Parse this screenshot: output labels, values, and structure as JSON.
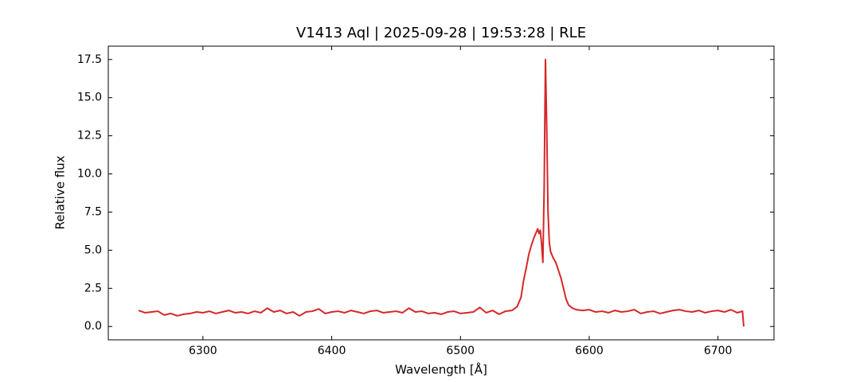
{
  "chart_data": {
    "type": "line",
    "title": "V1413 Aql | 2025-09-28 | 19:53:28 | RLE",
    "x_label": "Wavelength [Å]",
    "y_label": "Relative flux",
    "x": [
      6250,
      6255,
      6260,
      6265,
      6270,
      6275,
      6280,
      6285,
      6290,
      6295,
      6300,
      6305,
      6310,
      6315,
      6320,
      6325,
      6330,
      6335,
      6340,
      6345,
      6350,
      6355,
      6360,
      6365,
      6370,
      6375,
      6380,
      6385,
      6390,
      6395,
      6400,
      6405,
      6410,
      6415,
      6420,
      6425,
      6430,
      6435,
      6440,
      6445,
      6450,
      6455,
      6460,
      6465,
      6470,
      6475,
      6480,
      6485,
      6490,
      6495,
      6500,
      6505,
      6510,
      6515,
      6520,
      6525,
      6530,
      6535,
      6540,
      6544,
      6547,
      6549,
      6551,
      6553,
      6555,
      6557,
      6559,
      6560,
      6561,
      6562,
      6563,
      6564,
      6565,
      6566,
      6567,
      6568,
      6569,
      6570,
      6572,
      6574,
      6576,
      6578,
      6580,
      6582,
      6584,
      6587,
      6590,
      6595,
      6600,
      6605,
      6610,
      6615,
      6620,
      6625,
      6630,
      6635,
      6640,
      6645,
      6650,
      6655,
      6660,
      6665,
      6670,
      6675,
      6680,
      6685,
      6690,
      6695,
      6700,
      6705,
      6710,
      6715,
      6719,
      6720
    ],
    "series": [
      {
        "name": "Relative flux",
        "color": "#d62728",
        "values": [
          1.05,
          0.9,
          0.95,
          1.0,
          0.75,
          0.85,
          0.7,
          0.8,
          0.85,
          0.95,
          0.9,
          1.0,
          0.85,
          0.95,
          1.05,
          0.9,
          0.95,
          0.85,
          1.0,
          0.9,
          1.2,
          0.95,
          1.05,
          0.85,
          0.95,
          0.7,
          0.95,
          1.0,
          1.15,
          0.85,
          0.95,
          1.0,
          0.9,
          1.05,
          0.95,
          0.85,
          1.0,
          1.05,
          0.9,
          0.95,
          1.0,
          0.9,
          1.2,
          0.95,
          1.0,
          0.85,
          0.9,
          0.8,
          0.95,
          1.0,
          0.85,
          0.9,
          0.95,
          1.25,
          0.9,
          1.05,
          0.8,
          1.0,
          1.05,
          1.3,
          1.9,
          3.0,
          3.8,
          4.7,
          5.3,
          5.8,
          6.2,
          6.4,
          6.1,
          6.3,
          5.4,
          4.2,
          9.0,
          17.5,
          13.0,
          7.5,
          5.5,
          4.9,
          4.5,
          4.2,
          3.7,
          3.2,
          2.5,
          1.8,
          1.4,
          1.2,
          1.1,
          1.05,
          1.1,
          0.95,
          1.0,
          0.9,
          1.05,
          0.95,
          1.0,
          1.1,
          0.85,
          0.95,
          1.0,
          0.85,
          0.95,
          1.05,
          1.1,
          1.0,
          0.95,
          1.05,
          0.9,
          1.0,
          1.05,
          0.95,
          1.1,
          0.9,
          1.0,
          0.0
        ]
      }
    ],
    "xlim": [
      6226.5,
      6743.5
    ],
    "ylim": [
      -0.875,
      18.375
    ],
    "xticks": [
      6300,
      6400,
      6500,
      6600,
      6700
    ],
    "yticks": [
      {
        "value": 0,
        "label": "0.0"
      },
      2.5,
      {
        "value": 5,
        "label": "5.0"
      },
      7.5,
      {
        "value": 10,
        "label": "10.0"
      },
      12.5,
      {
        "value": 15,
        "label": "15.0"
      },
      17.5
    ],
    "grid": false
  }
}
